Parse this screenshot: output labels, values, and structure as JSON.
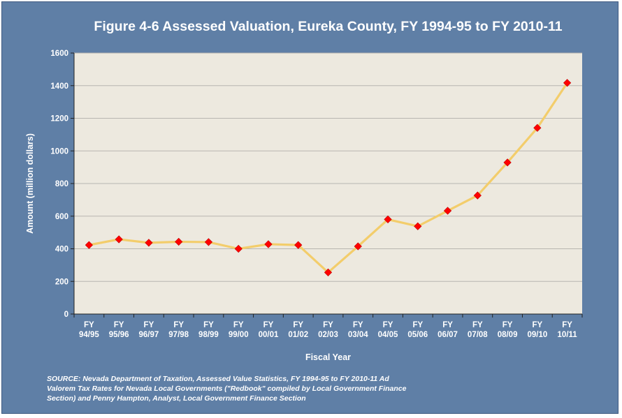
{
  "chart_data": {
    "type": "line",
    "title": "Figure 4-6 Assessed Valuation, Eureka County, FY 1994-95 to FY 2010-11",
    "xlabel": "Fiscal Year",
    "ylabel": "Amount (million dollars)",
    "categories": [
      [
        "FY",
        "94/95"
      ],
      [
        "FY",
        "95/96"
      ],
      [
        "FY",
        "96/97"
      ],
      [
        "FY",
        "97/98"
      ],
      [
        "FY",
        "98/99"
      ],
      [
        "FY",
        "99/00"
      ],
      [
        "FY",
        "00/01"
      ],
      [
        "FY",
        "01/02"
      ],
      [
        "FY",
        "02/03"
      ],
      [
        "FY",
        "03/04"
      ],
      [
        "FY",
        "04/05"
      ],
      [
        "FY",
        "05/06"
      ],
      [
        "FY",
        "06/07"
      ],
      [
        "FY",
        "07/08"
      ],
      [
        "FY",
        "08/09"
      ],
      [
        "FY",
        "09/10"
      ],
      [
        "FY",
        "10/11"
      ]
    ],
    "series": [
      {
        "values": [
          423,
          458,
          437,
          443,
          441,
          400,
          428,
          423,
          255,
          415,
          580,
          538,
          633,
          727,
          929,
          1141,
          1417
        ]
      }
    ],
    "ylim": [
      0,
      1600
    ],
    "yticks": [
      0,
      200,
      400,
      600,
      800,
      1000,
      1200,
      1400,
      1600
    ],
    "grid": true,
    "legend": "none",
    "colors": {
      "frame": "#5f7fa6",
      "plot_background": "#ede9df",
      "line": "#f3cd6b",
      "marker": "#ff0000",
      "gridline": "#b8b6b0",
      "text": "#ffffff"
    }
  },
  "source_note": "SOURCE: Nevada Department of Taxation, Assessed Value Statistics, FY 1994-95 to FY 2010-11  Ad Valorem Tax Rates for Nevada Local Governments (\"Redbook\" compiled by Local Government Finance Section) and Penny Hampton, Analyst, Local Government Finance Section"
}
